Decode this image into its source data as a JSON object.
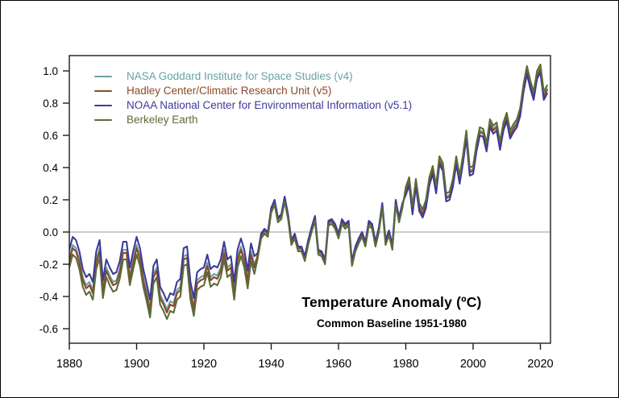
{
  "figure": {
    "background": "#ffffff",
    "outer_border_color": "#000000",
    "axis_color": "#1c1c1c",
    "zero_line_color": "#aeaeae",
    "tick_label_color": "#000000"
  },
  "chart_data": {
    "type": "line",
    "title": "Temperature Anomaly (ºC)",
    "subtitle": "Common Baseline 1951-1980",
    "legend_position": "top-left-inside",
    "grid": false,
    "zero_line": true,
    "x_start_year": 1880,
    "x_end_year": 2022,
    "xlim": [
      1880,
      2023
    ],
    "ylim": [
      -0.69,
      1.095
    ],
    "xticks": [
      1880,
      1900,
      1920,
      1940,
      1960,
      1980,
      2000,
      2020
    ],
    "yticks": [
      -0.6,
      -0.4,
      -0.2,
      0.0,
      0.2,
      0.4,
      0.6,
      0.8,
      1.0
    ],
    "series": [
      {
        "name": "NASA Goddard Institute for Space Studies (v4)",
        "color": "#6BA2A4",
        "values": [
          -0.16,
          -0.08,
          -0.1,
          -0.17,
          -0.28,
          -0.33,
          -0.31,
          -0.36,
          -0.17,
          -0.1,
          -0.35,
          -0.22,
          -0.27,
          -0.31,
          -0.3,
          -0.23,
          -0.11,
          -0.11,
          -0.27,
          -0.17,
          -0.08,
          -0.15,
          -0.28,
          -0.37,
          -0.47,
          -0.26,
          -0.22,
          -0.39,
          -0.43,
          -0.48,
          -0.43,
          -0.44,
          -0.36,
          -0.34,
          -0.15,
          -0.14,
          -0.36,
          -0.46,
          -0.3,
          -0.28,
          -0.27,
          -0.19,
          -0.28,
          -0.26,
          -0.27,
          -0.22,
          -0.11,
          -0.22,
          -0.2,
          -0.36,
          -0.16,
          -0.09,
          -0.16,
          -0.29,
          -0.12,
          -0.2,
          -0.15,
          -0.03,
          0.0,
          -0.02,
          0.13,
          0.18,
          0.07,
          0.09,
          0.2,
          0.09,
          -0.07,
          -0.03,
          -0.11,
          -0.11,
          -0.17,
          -0.07,
          0.01,
          0.08,
          -0.13,
          -0.14,
          -0.19,
          0.05,
          0.06,
          0.03,
          -0.03,
          0.06,
          0.03,
          0.05,
          -0.2,
          -0.11,
          -0.06,
          -0.02,
          -0.08,
          0.05,
          0.03,
          -0.08,
          0.01,
          0.16,
          -0.07,
          -0.01,
          -0.1,
          0.18,
          0.07,
          0.16,
          0.26,
          0.32,
          0.14,
          0.31,
          0.16,
          0.12,
          0.18,
          0.32,
          0.39,
          0.27,
          0.45,
          0.41,
          0.22,
          0.23,
          0.31,
          0.45,
          0.33,
          0.46,
          0.61,
          0.38,
          0.39,
          0.53,
          0.63,
          0.62,
          0.53,
          0.68,
          0.64,
          0.66,
          0.54,
          0.66,
          0.72,
          0.61,
          0.65,
          0.68,
          0.75,
          0.9,
          1.01,
          0.92,
          0.85,
          0.98,
          1.02,
          0.85,
          0.89
        ]
      },
      {
        "name": "Hadley Center/Climatic Research Unit (v5)",
        "color": "#8A4A28",
        "values": [
          -0.18,
          -0.1,
          -0.12,
          -0.19,
          -0.3,
          -0.35,
          -0.33,
          -0.38,
          -0.19,
          -0.12,
          -0.37,
          -0.24,
          -0.29,
          -0.33,
          -0.32,
          -0.25,
          -0.13,
          -0.13,
          -0.29,
          -0.19,
          -0.1,
          -0.17,
          -0.3,
          -0.39,
          -0.49,
          -0.28,
          -0.24,
          -0.41,
          -0.45,
          -0.5,
          -0.45,
          -0.46,
          -0.38,
          -0.36,
          -0.17,
          -0.16,
          -0.38,
          -0.48,
          -0.32,
          -0.3,
          -0.29,
          -0.21,
          -0.3,
          -0.28,
          -0.29,
          -0.24,
          -0.13,
          -0.24,
          -0.22,
          -0.38,
          -0.18,
          -0.11,
          -0.18,
          -0.31,
          -0.14,
          -0.22,
          -0.14,
          -0.02,
          0.01,
          -0.01,
          0.14,
          0.19,
          0.08,
          0.1,
          0.21,
          0.1,
          -0.06,
          -0.02,
          -0.1,
          -0.1,
          -0.16,
          -0.06,
          0.02,
          0.09,
          -0.12,
          -0.13,
          -0.18,
          0.06,
          0.07,
          0.04,
          -0.02,
          0.07,
          0.04,
          0.06,
          -0.19,
          -0.1,
          -0.05,
          -0.01,
          -0.07,
          0.06,
          0.04,
          -0.07,
          0.02,
          0.17,
          -0.06,
          0.0,
          -0.09,
          0.19,
          0.08,
          0.17,
          0.25,
          0.31,
          0.13,
          0.3,
          0.15,
          0.11,
          0.17,
          0.31,
          0.38,
          0.26,
          0.44,
          0.4,
          0.21,
          0.22,
          0.3,
          0.44,
          0.32,
          0.45,
          0.6,
          0.37,
          0.38,
          0.52,
          0.62,
          0.61,
          0.52,
          0.67,
          0.63,
          0.65,
          0.53,
          0.65,
          0.71,
          0.6,
          0.64,
          0.67,
          0.74,
          0.89,
          1.0,
          0.91,
          0.84,
          0.97,
          1.01,
          0.84,
          0.88
        ]
      },
      {
        "name": "NOAA National Center for Environmental Information (v5.1)",
        "color": "#3E3A99",
        "values": [
          -0.11,
          -0.03,
          -0.05,
          -0.12,
          -0.23,
          -0.28,
          -0.26,
          -0.31,
          -0.12,
          -0.05,
          -0.3,
          -0.17,
          -0.22,
          -0.26,
          -0.25,
          -0.18,
          -0.06,
          -0.06,
          -0.22,
          -0.12,
          -0.03,
          -0.1,
          -0.23,
          -0.32,
          -0.42,
          -0.21,
          -0.17,
          -0.34,
          -0.38,
          -0.43,
          -0.38,
          -0.39,
          -0.31,
          -0.29,
          -0.1,
          -0.09,
          -0.31,
          -0.41,
          -0.25,
          -0.23,
          -0.22,
          -0.14,
          -0.23,
          -0.21,
          -0.22,
          -0.17,
          -0.06,
          -0.17,
          -0.15,
          -0.31,
          -0.11,
          -0.04,
          -0.11,
          -0.24,
          -0.07,
          -0.15,
          -0.13,
          -0.01,
          0.02,
          0.0,
          0.15,
          0.2,
          0.09,
          0.11,
          0.22,
          0.11,
          -0.05,
          -0.01,
          -0.09,
          -0.09,
          -0.15,
          -0.05,
          0.03,
          0.1,
          -0.11,
          -0.12,
          -0.17,
          0.07,
          0.08,
          0.05,
          -0.01,
          0.08,
          0.05,
          0.07,
          -0.18,
          -0.09,
          -0.04,
          0.0,
          -0.06,
          0.07,
          0.05,
          -0.06,
          0.03,
          0.18,
          -0.05,
          0.01,
          -0.08,
          0.2,
          0.09,
          0.18,
          0.23,
          0.29,
          0.11,
          0.28,
          0.13,
          0.09,
          0.15,
          0.29,
          0.36,
          0.24,
          0.42,
          0.38,
          0.19,
          0.2,
          0.28,
          0.42,
          0.3,
          0.43,
          0.58,
          0.35,
          0.36,
          0.5,
          0.6,
          0.59,
          0.5,
          0.65,
          0.61,
          0.63,
          0.51,
          0.63,
          0.69,
          0.58,
          0.62,
          0.65,
          0.72,
          0.87,
          0.98,
          0.89,
          0.82,
          0.95,
          0.99,
          0.82,
          0.86
        ]
      },
      {
        "name": "Berkeley Earth",
        "color": "#5C6B38",
        "values": [
          -0.22,
          -0.14,
          -0.16,
          -0.23,
          -0.34,
          -0.39,
          -0.37,
          -0.42,
          -0.23,
          -0.16,
          -0.41,
          -0.28,
          -0.33,
          -0.37,
          -0.36,
          -0.29,
          -0.17,
          -0.17,
          -0.33,
          -0.23,
          -0.14,
          -0.21,
          -0.34,
          -0.43,
          -0.53,
          -0.32,
          -0.28,
          -0.45,
          -0.49,
          -0.54,
          -0.49,
          -0.5,
          -0.42,
          -0.4,
          -0.21,
          -0.2,
          -0.42,
          -0.52,
          -0.36,
          -0.34,
          -0.33,
          -0.25,
          -0.34,
          -0.32,
          -0.33,
          -0.28,
          -0.17,
          -0.28,
          -0.26,
          -0.42,
          -0.22,
          -0.15,
          -0.22,
          -0.35,
          -0.18,
          -0.26,
          -0.16,
          -0.04,
          -0.01,
          -0.03,
          0.12,
          0.17,
          0.06,
          0.08,
          0.19,
          0.08,
          -0.08,
          -0.04,
          -0.12,
          -0.12,
          -0.18,
          -0.08,
          0.0,
          0.07,
          -0.14,
          -0.15,
          -0.2,
          0.04,
          0.05,
          0.02,
          -0.04,
          0.05,
          0.02,
          0.04,
          -0.21,
          -0.12,
          -0.07,
          -0.03,
          -0.09,
          0.04,
          0.02,
          -0.09,
          0.0,
          0.15,
          -0.08,
          -0.02,
          -0.11,
          0.17,
          0.06,
          0.15,
          0.28,
          0.34,
          0.16,
          0.33,
          0.18,
          0.14,
          0.2,
          0.34,
          0.41,
          0.29,
          0.47,
          0.43,
          0.24,
          0.25,
          0.33,
          0.47,
          0.35,
          0.48,
          0.63,
          0.4,
          0.41,
          0.55,
          0.65,
          0.64,
          0.55,
          0.7,
          0.66,
          0.68,
          0.56,
          0.68,
          0.74,
          0.63,
          0.67,
          0.7,
          0.77,
          0.92,
          1.03,
          0.94,
          0.87,
          1.0,
          1.04,
          0.87,
          0.91
        ]
      }
    ]
  }
}
